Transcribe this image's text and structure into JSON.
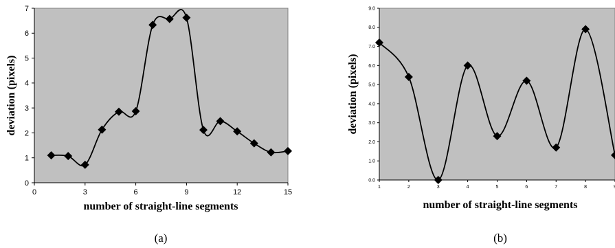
{
  "chart_data": [
    {
      "type": "line",
      "caption": "(a)",
      "xlabel": "number of straight-line segments",
      "ylabel": "deviation (pixels)",
      "xlim": [
        0,
        15
      ],
      "ylim": [
        0,
        7
      ],
      "x_ticks": [
        "0",
        "3",
        "6",
        "9",
        "12",
        "15"
      ],
      "y_ticks": [
        "0",
        "1",
        "2",
        "3",
        "4",
        "5",
        "6",
        "7"
      ],
      "grid": false,
      "background": "#c0c0c0",
      "line_color": "#000000",
      "marker": "diamond",
      "smooth": true,
      "x": [
        1,
        2,
        3,
        4,
        5,
        6,
        7,
        8,
        9,
        10,
        11,
        12,
        13,
        14,
        15
      ],
      "y": [
        1.1,
        1.07,
        0.72,
        2.13,
        2.85,
        2.87,
        6.33,
        6.57,
        6.62,
        2.12,
        2.47,
        2.06,
        1.58,
        1.22,
        1.27
      ]
    },
    {
      "type": "line",
      "caption": "(b)",
      "xlabel": "number of straight-line segments",
      "ylabel": "deviation (pixels)",
      "xlim": [
        1,
        9
      ],
      "ylim": [
        0,
        9
      ],
      "x_ticks": [
        "1",
        "2",
        "3",
        "4",
        "5",
        "6",
        "7",
        "8",
        "9"
      ],
      "y_ticks": [
        "0.0",
        "1.0",
        "2.0",
        "3.0",
        "4.0",
        "5.0",
        "6.0",
        "7.0",
        "8.0",
        "9.0"
      ],
      "grid": false,
      "background": "#c0c0c0",
      "line_color": "#000000",
      "marker": "diamond",
      "smooth": true,
      "x": [
        1,
        2,
        3,
        4,
        5,
        6,
        7,
        8,
        9
      ],
      "y": [
        7.2,
        5.4,
        0.0,
        6.0,
        2.3,
        5.2,
        1.7,
        7.9,
        1.3
      ]
    }
  ]
}
